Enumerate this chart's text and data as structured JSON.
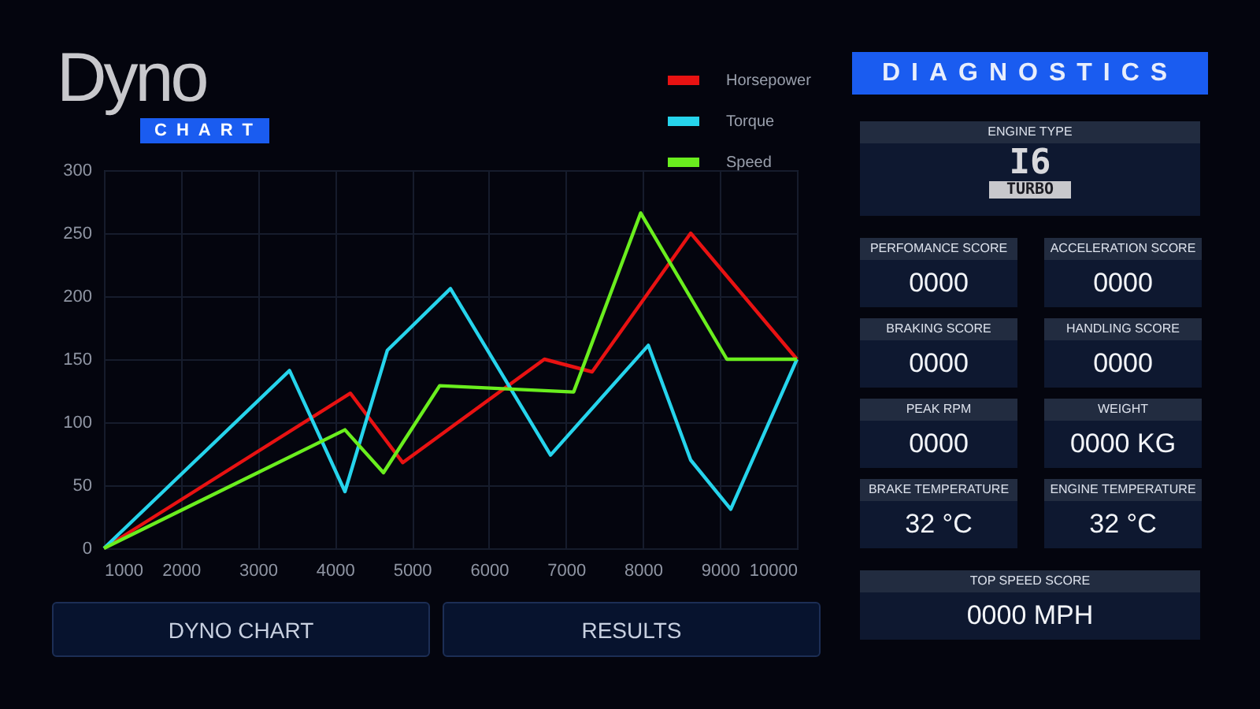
{
  "chart_data": [
    {
      "type": "line",
      "title": "Dyno",
      "subtitle": "CHART",
      "annotations": [
        "DYNO CHART",
        "RESULTS"
      ],
      "xlim": [
        1000,
        10000
      ],
      "xticks": [
        1000,
        2000,
        3000,
        4000,
        5000,
        6000,
        7000,
        8000,
        9000,
        10000
      ],
      "ylim": [
        0,
        300
      ],
      "yticks": [
        0,
        50,
        100,
        150,
        200,
        250,
        300
      ],
      "grid": true,
      "legend": "top right",
      "series": [
        {
          "name": "Horsepower",
          "color": "#e81212",
          "x": [
            1000,
            4200,
            4880,
            6720,
            7340,
            8620,
            10000
          ],
          "values": [
            0,
            123,
            68,
            150,
            140,
            250,
            150
          ]
        },
        {
          "name": "Torque",
          "color": "#26d4ec",
          "x": [
            1000,
            3410,
            4130,
            4680,
            5500,
            6800,
            8070,
            8620,
            9140,
            10000
          ],
          "values": [
            0,
            141,
            45,
            157,
            206,
            74,
            161,
            70,
            31,
            150
          ]
        },
        {
          "name": "Speed",
          "color": "#6aee1e",
          "x": [
            1000,
            4130,
            4630,
            5360,
            7100,
            7970,
            9090,
            10000
          ],
          "values": [
            0,
            94,
            60,
            129,
            124,
            266,
            150,
            150
          ]
        }
      ]
    },
    {
      "type": "other",
      "title": "DIAGNOSTICS",
      "annotations": [
        "ENGINE TYPE",
        "I6",
        "TURBO",
        "PERFOMANCE SCORE",
        "0000",
        "ACCELERATION SCORE",
        "0000",
        "BRAKING SCORE",
        "0000",
        "HANDLING SCORE",
        "0000",
        "PEAK RPM",
        "0000",
        "WEIGHT",
        "0000 KG",
        "BRAKE TEMPERATURE",
        "32 °C",
        "ENGINE TEMPERATURE",
        "32 °C",
        "TOP SPEED SCORE",
        "0000 MPH"
      ]
    }
  ]
}
